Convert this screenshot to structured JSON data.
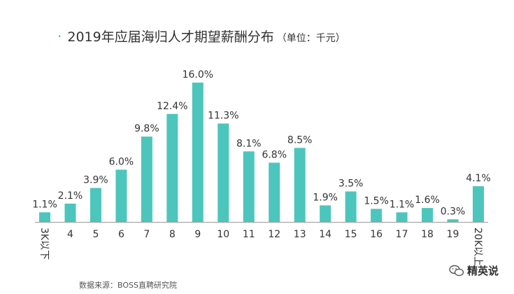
{
  "title": "2019年应届海归人才期望薪酬分布",
  "unit": "（单位：千元）",
  "source": "数据来源：BOSS直聘研究院",
  "logo_text": "精英说",
  "colors": {
    "bar": "#4cc6bd",
    "accent": "#3fbfb3",
    "axis": "#9a9a9a",
    "text": "#333333"
  },
  "chart_data": {
    "type": "bar",
    "title": "2019年应届海归人才期望薪酬分布",
    "xlabel": "",
    "ylabel": "",
    "categories": [
      "3K以下",
      "4",
      "5",
      "6",
      "7",
      "8",
      "9",
      "10",
      "11",
      "12",
      "13",
      "14",
      "15",
      "16",
      "17",
      "18",
      "19",
      "20K以上"
    ],
    "values": [
      1.1,
      2.1,
      3.9,
      6.0,
      9.8,
      12.4,
      16.0,
      11.3,
      8.1,
      6.8,
      8.5,
      1.9,
      3.5,
      1.5,
      1.1,
      1.6,
      0.3,
      4.1
    ],
    "value_labels": [
      "1.1%",
      "2.1%",
      "3.9%",
      "6.0%",
      "9.8%",
      "12.4%",
      "16.0%",
      "11.3%",
      "8.1%",
      "6.8%",
      "8.5%",
      "1.9%",
      "3.5%",
      "1.5%",
      "1.1%",
      "1.6%",
      "0.3%",
      "4.1%"
    ],
    "ylim": [
      0,
      16.0
    ],
    "grid": false,
    "legend": "none"
  }
}
